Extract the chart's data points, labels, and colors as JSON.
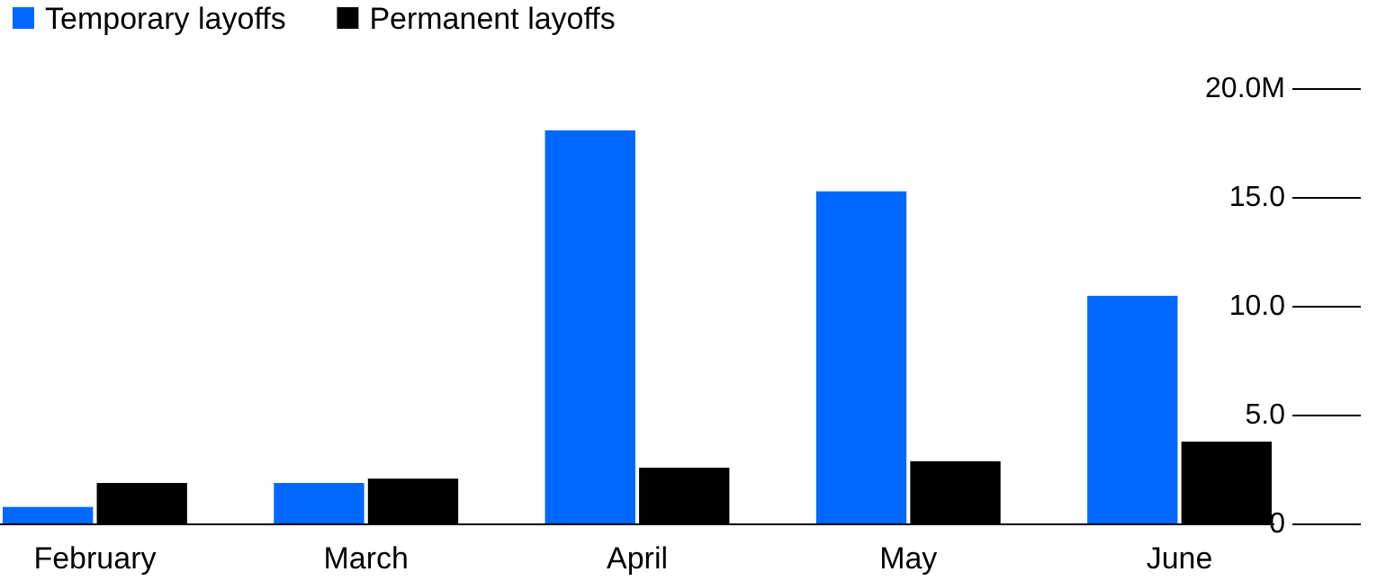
{
  "chart_data": {
    "type": "bar",
    "categories": [
      "February",
      "March",
      "April",
      "May",
      "June"
    ],
    "series": [
      {
        "name": "Temporary layoffs",
        "color": "#0068ff",
        "values": [
          0.8,
          1.9,
          18.1,
          15.3,
          10.5
        ]
      },
      {
        "name": "Permanent layoffs",
        "color": "#000000",
        "values": [
          1.9,
          2.1,
          2.6,
          2.9,
          3.8
        ]
      }
    ],
    "ylim": [
      0,
      20
    ],
    "yticks": [
      {
        "value": 0,
        "label": "0"
      },
      {
        "value": 5,
        "label": "5.0"
      },
      {
        "value": 10,
        "label": "10.0"
      },
      {
        "value": 15,
        "label": "15.0"
      },
      {
        "value": 20,
        "label": "20.0M"
      }
    ],
    "legend": "top left"
  }
}
